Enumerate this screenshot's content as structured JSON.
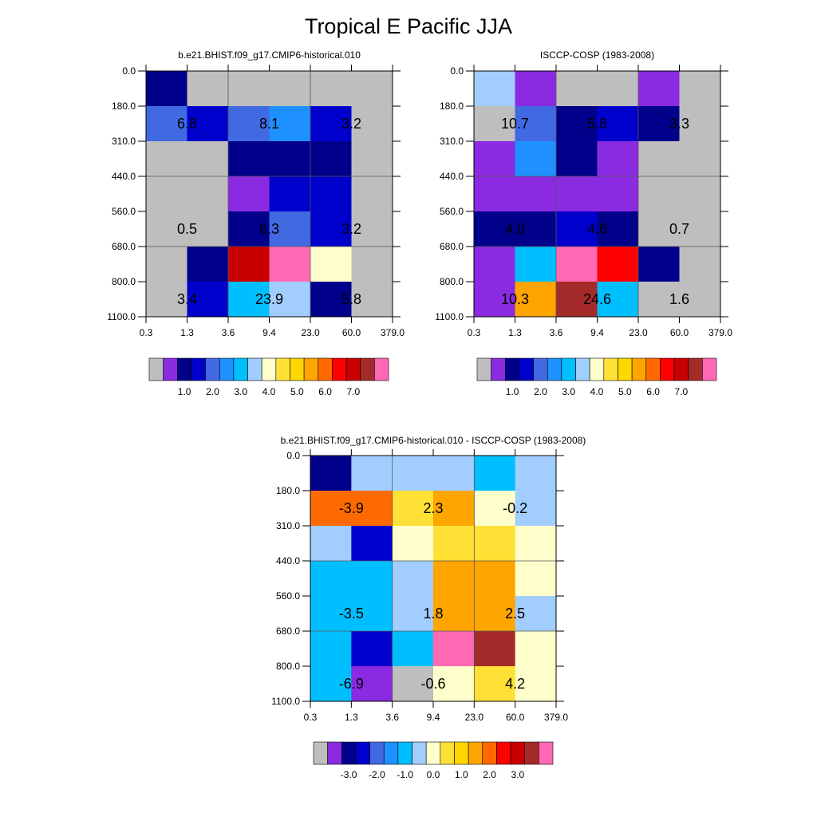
{
  "figure": {
    "title": "Tropical E Pacific JJA"
  },
  "colors": {
    "missing": "#bebebe",
    "palette": [
      "#bebebe",
      "#8a2be2",
      "#00008b",
      "#0000cd",
      "#4169e1",
      "#1e90ff",
      "#00bfff",
      "#a2cdff",
      "#ffffcc",
      "#ffe135",
      "#ffd700",
      "#ffa500",
      "#ff6a00",
      "#ff0000",
      "#c80000",
      "#a52a2a",
      "#ff69b4"
    ],
    "border": "#000000",
    "grid": "#555555"
  },
  "chart_data": [
    {
      "type": "heatmap",
      "title": "b.e21.BHIST.f09_g17.CMIP6-historical.010",
      "x_ticks": [
        "0.3",
        "1.3",
        "3.6",
        "9.4",
        "23.0",
        "60.0",
        "379.0"
      ],
      "y_ticks": [
        "0.0",
        "180.0",
        "310.0",
        "440.0",
        "560.0",
        "680.0",
        "800.0",
        "1100.0"
      ],
      "cells": [
        [
          2,
          0,
          0,
          0,
          0,
          0
        ],
        [
          4,
          3,
          4,
          5,
          3,
          0
        ],
        [
          0,
          0,
          2,
          2,
          2,
          0
        ],
        [
          0,
          0,
          1,
          3,
          3,
          0
        ],
        [
          0,
          0,
          2,
          4,
          3,
          0
        ],
        [
          0,
          2,
          14,
          16,
          8,
          0
        ],
        [
          0,
          3,
          6,
          7,
          2,
          0
        ]
      ],
      "labels": [
        {
          "text": "6.8",
          "col": 0.5,
          "row": 1
        },
        {
          "text": "8.1",
          "col": 2.5,
          "row": 1
        },
        {
          "text": "3.2",
          "col": 4.5,
          "row": 1
        },
        {
          "text": "0.5",
          "col": 0.5,
          "row": 4
        },
        {
          "text": "6.3",
          "col": 2.5,
          "row": 4
        },
        {
          "text": "3.2",
          "col": 4.5,
          "row": 4
        },
        {
          "text": "3.4",
          "col": 0.5,
          "row": 6
        },
        {
          "text": "23.9",
          "col": 2.5,
          "row": 6
        },
        {
          "text": "5.8",
          "col": 4.5,
          "row": 6
        }
      ],
      "colorbar": {
        "labels": [
          "1.0",
          "2.0",
          "3.0",
          "4.0",
          "5.0",
          "6.0",
          "7.0"
        ]
      }
    },
    {
      "type": "heatmap",
      "title": "ISCCP-COSP (1983-2008)",
      "x_ticks": [
        "0.3",
        "1.3",
        "3.6",
        "9.4",
        "23.0",
        "60.0",
        "379.0"
      ],
      "y_ticks": [
        "0.0",
        "180.0",
        "310.0",
        "440.0",
        "560.0",
        "680.0",
        "800.0",
        "1100.0"
      ],
      "cells": [
        [
          7,
          1,
          0,
          0,
          1,
          0
        ],
        [
          0,
          4,
          2,
          3,
          2,
          0
        ],
        [
          1,
          5,
          2,
          1,
          0,
          0
        ],
        [
          1,
          1,
          1,
          1,
          0,
          0
        ],
        [
          2,
          2,
          3,
          2,
          0,
          0
        ],
        [
          1,
          6,
          16,
          13,
          2,
          0
        ],
        [
          1,
          11,
          15,
          6,
          0,
          0
        ]
      ],
      "labels": [
        {
          "text": "10.7",
          "col": 0.5,
          "row": 1
        },
        {
          "text": "5.8",
          "col": 2.5,
          "row": 1
        },
        {
          "text": "3.3",
          "col": 4.5,
          "row": 1
        },
        {
          "text": "4.0",
          "col": 0.5,
          "row": 4
        },
        {
          "text": "4.6",
          "col": 2.5,
          "row": 4
        },
        {
          "text": "0.7",
          "col": 4.5,
          "row": 4
        },
        {
          "text": "10.3",
          "col": 0.5,
          "row": 6
        },
        {
          "text": "24.6",
          "col": 2.5,
          "row": 6
        },
        {
          "text": "1.6",
          "col": 4.5,
          "row": 6
        }
      ],
      "colorbar": {
        "labels": [
          "1.0",
          "2.0",
          "3.0",
          "4.0",
          "5.0",
          "6.0",
          "7.0"
        ]
      }
    },
    {
      "type": "heatmap",
      "title": "b.e21.BHIST.f09_g17.CMIP6-historical.010 - ISCCP-COSP (1983-2008)",
      "x_ticks": [
        "0.3",
        "1.3",
        "3.6",
        "9.4",
        "23.0",
        "60.0",
        "379.0"
      ],
      "y_ticks": [
        "0.0",
        "180.0",
        "310.0",
        "440.0",
        "560.0",
        "680.0",
        "800.0",
        "1100.0"
      ],
      "cells": [
        [
          2,
          7,
          7,
          7,
          6,
          7
        ],
        [
          12,
          12,
          9,
          11,
          8,
          7
        ],
        [
          7,
          3,
          8,
          9,
          9,
          8
        ],
        [
          6,
          6,
          7,
          11,
          11,
          8
        ],
        [
          6,
          6,
          7,
          11,
          11,
          7
        ],
        [
          6,
          3,
          6,
          16,
          15,
          8
        ],
        [
          6,
          1,
          0,
          8,
          9,
          8
        ]
      ],
      "labels": [
        {
          "text": "-3.9",
          "col": 0.5,
          "row": 1
        },
        {
          "text": "2.3",
          "col": 2.5,
          "row": 1
        },
        {
          "text": "-0.2",
          "col": 4.5,
          "row": 1
        },
        {
          "text": "-3.5",
          "col": 0.5,
          "row": 4
        },
        {
          "text": "1.8",
          "col": 2.5,
          "row": 4
        },
        {
          "text": "2.5",
          "col": 4.5,
          "row": 4
        },
        {
          "text": "-6.9",
          "col": 0.5,
          "row": 6
        },
        {
          "text": "-0.6",
          "col": 2.5,
          "row": 6
        },
        {
          "text": "4.2",
          "col": 4.5,
          "row": 6
        }
      ],
      "colorbar": {
        "labels": [
          "-3.0",
          "-2.0",
          "-1.0",
          "0.0",
          "1.0",
          "2.0",
          "3.0"
        ]
      }
    }
  ]
}
